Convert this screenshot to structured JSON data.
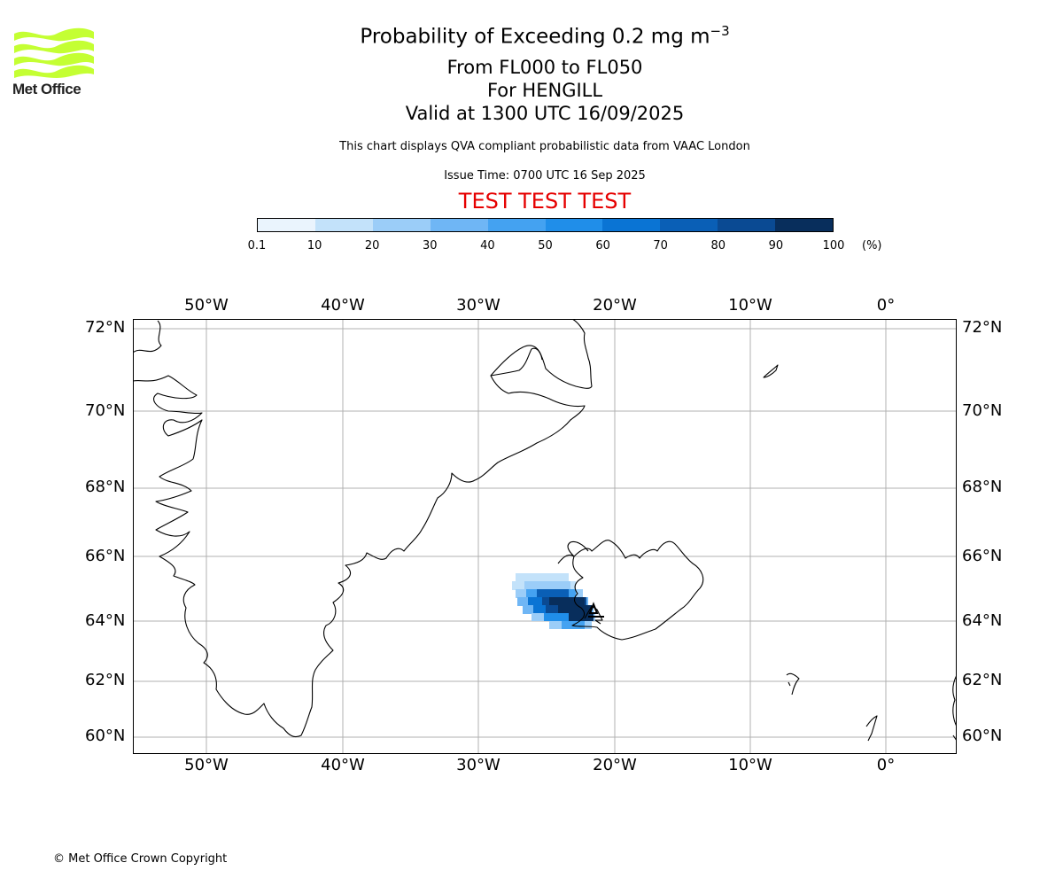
{
  "header": {
    "logo_text": "Met Office",
    "title_main": "Probability of Exceeding 0.2 mg m",
    "title_sup": "−3",
    "title_levels": "From FL000 to FL050",
    "title_volcano": "For HENGILL",
    "title_valid": "Valid at 1300 UTC 16/09/2025",
    "description": "This chart displays QVA compliant probabilistic data from VAAC London",
    "issue_time": "Issue Time: 0700 UTC 16 Sep 2025",
    "test_banner": "TEST TEST TEST"
  },
  "colorbar": {
    "ticks": [
      "0.1",
      "10",
      "20",
      "30",
      "40",
      "50",
      "60",
      "70",
      "80",
      "90",
      "100"
    ],
    "unit": "(%)",
    "colors": [
      "#eaf4fd",
      "#c3e2fa",
      "#9bcdf8",
      "#6fb6f5",
      "#44a2f1",
      "#208ee9",
      "#0a74d4",
      "#0a5fb6",
      "#0a4a93",
      "#082e5c"
    ]
  },
  "map": {
    "lon_labels": [
      "50°W",
      "40°W",
      "30°W",
      "20°W",
      "10°W",
      "0°"
    ],
    "lat_labels": [
      "72°N",
      "70°N",
      "68°N",
      "66°N",
      "64°N",
      "62°N",
      "60°N"
    ],
    "lon_range": [
      -55.4,
      5.2
    ],
    "lat_range": [
      59.6,
      72.2
    ],
    "grid": true,
    "volcano": "HENGILL"
  },
  "footer": {
    "copyright": "© Met Office Crown Copyright"
  }
}
